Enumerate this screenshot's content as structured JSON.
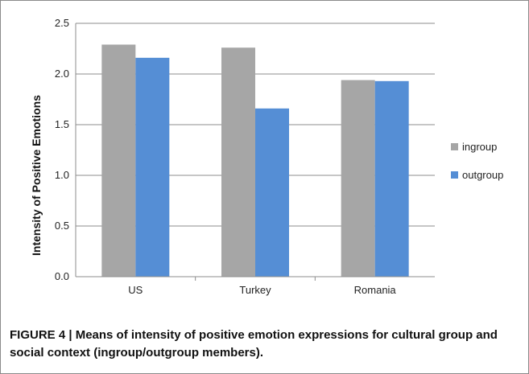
{
  "chart_data": {
    "type": "bar",
    "title": "",
    "xlabel": "",
    "ylabel": "Intensity of Positive Emotions",
    "categories": [
      "US",
      "Turkey",
      "Romania"
    ],
    "series": [
      {
        "name": "ingroup",
        "values": [
          2.29,
          2.26,
          1.94
        ],
        "color": "#a6a6a6"
      },
      {
        "name": "outgroup",
        "values": [
          2.16,
          1.66,
          1.93
        ],
        "color": "#558ed5"
      }
    ],
    "ylim": [
      0,
      2.5
    ],
    "yticks": [
      "0.0",
      "0.5",
      "1.0",
      "1.5",
      "2.0",
      "2.5"
    ],
    "grid": true,
    "legend_position": "right"
  },
  "caption": "FIGURE 4 | Means of intensity of positive emotion expressions for cultural group and social context (ingroup/outgroup members)."
}
